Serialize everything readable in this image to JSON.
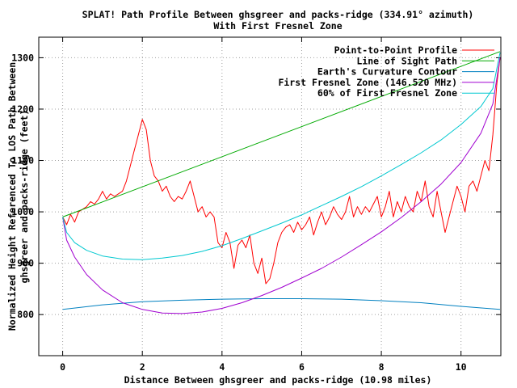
{
  "chart_data": {
    "type": "line",
    "title": "SPLAT! Path Profile Between ghsgreer and packs-ridge (334.91° azimuth)",
    "subtitle": "With First Fresnel Zone",
    "xlabel": "Distance Between ghsgreer and packs-ridge (10.98 miles)",
    "ylabel_line1": "Normalized Height Referenced To LOS Path Between",
    "ylabel_line2": "ghsgreer and packs-ridge (feet)",
    "xlim": [
      -0.6,
      11.0
    ],
    "ylim": [
      720,
      1340
    ],
    "xticks": [
      0,
      2,
      4,
      6,
      8,
      10
    ],
    "yticks": [
      800,
      900,
      1000,
      1100,
      1200,
      1300
    ],
    "grid": true,
    "legend_position": "top-right",
    "series": [
      {
        "name": "Point-to-Point Profile",
        "color": "#ff0000",
        "points": [
          [
            0,
            990
          ],
          [
            0.1,
            975
          ],
          [
            0.2,
            995
          ],
          [
            0.3,
            980
          ],
          [
            0.4,
            1000
          ],
          [
            0.5,
            1005
          ],
          [
            0.6,
            1010
          ],
          [
            0.7,
            1020
          ],
          [
            0.8,
            1015
          ],
          [
            0.9,
            1025
          ],
          [
            1.0,
            1040
          ],
          [
            1.1,
            1025
          ],
          [
            1.2,
            1035
          ],
          [
            1.3,
            1030
          ],
          [
            1.4,
            1035
          ],
          [
            1.5,
            1040
          ],
          [
            1.6,
            1060
          ],
          [
            1.7,
            1090
          ],
          [
            1.8,
            1120
          ],
          [
            1.9,
            1150
          ],
          [
            2.0,
            1180
          ],
          [
            2.1,
            1160
          ],
          [
            2.2,
            1100
          ],
          [
            2.3,
            1070
          ],
          [
            2.4,
            1060
          ],
          [
            2.5,
            1040
          ],
          [
            2.6,
            1050
          ],
          [
            2.7,
            1030
          ],
          [
            2.8,
            1020
          ],
          [
            2.9,
            1030
          ],
          [
            3.0,
            1025
          ],
          [
            3.1,
            1040
          ],
          [
            3.2,
            1060
          ],
          [
            3.3,
            1030
          ],
          [
            3.4,
            1000
          ],
          [
            3.5,
            1010
          ],
          [
            3.6,
            990
          ],
          [
            3.7,
            1000
          ],
          [
            3.8,
            990
          ],
          [
            3.9,
            940
          ],
          [
            4.0,
            930
          ],
          [
            4.1,
            960
          ],
          [
            4.2,
            940
          ],
          [
            4.3,
            890
          ],
          [
            4.4,
            935
          ],
          [
            4.5,
            945
          ],
          [
            4.6,
            930
          ],
          [
            4.7,
            955
          ],
          [
            4.8,
            900
          ],
          [
            4.9,
            880
          ],
          [
            5.0,
            910
          ],
          [
            5.1,
            860
          ],
          [
            5.2,
            870
          ],
          [
            5.3,
            900
          ],
          [
            5.4,
            940
          ],
          [
            5.5,
            960
          ],
          [
            5.6,
            970
          ],
          [
            5.7,
            975
          ],
          [
            5.8,
            960
          ],
          [
            5.9,
            980
          ],
          [
            6.0,
            965
          ],
          [
            6.1,
            975
          ],
          [
            6.2,
            990
          ],
          [
            6.3,
            955
          ],
          [
            6.4,
            980
          ],
          [
            6.5,
            1000
          ],
          [
            6.6,
            975
          ],
          [
            6.7,
            990
          ],
          [
            6.8,
            1010
          ],
          [
            6.9,
            995
          ],
          [
            7.0,
            985
          ],
          [
            7.1,
            1000
          ],
          [
            7.2,
            1030
          ],
          [
            7.3,
            990
          ],
          [
            7.4,
            1010
          ],
          [
            7.5,
            995
          ],
          [
            7.6,
            1010
          ],
          [
            7.7,
            1000
          ],
          [
            7.8,
            1015
          ],
          [
            7.9,
            1030
          ],
          [
            8.0,
            990
          ],
          [
            8.1,
            1010
          ],
          [
            8.2,
            1040
          ],
          [
            8.3,
            990
          ],
          [
            8.4,
            1020
          ],
          [
            8.5,
            1000
          ],
          [
            8.6,
            1030
          ],
          [
            8.7,
            1010
          ],
          [
            8.8,
            1000
          ],
          [
            8.9,
            1040
          ],
          [
            9.0,
            1020
          ],
          [
            9.1,
            1060
          ],
          [
            9.2,
            1010
          ],
          [
            9.3,
            990
          ],
          [
            9.4,
            1040
          ],
          [
            9.5,
            1000
          ],
          [
            9.6,
            960
          ],
          [
            9.7,
            990
          ],
          [
            9.8,
            1020
          ],
          [
            9.9,
            1050
          ],
          [
            10.0,
            1030
          ],
          [
            10.1,
            1000
          ],
          [
            10.2,
            1050
          ],
          [
            10.3,
            1060
          ],
          [
            10.4,
            1040
          ],
          [
            10.5,
            1070
          ],
          [
            10.6,
            1100
          ],
          [
            10.7,
            1080
          ],
          [
            10.8,
            1150
          ],
          [
            10.9,
            1250
          ],
          [
            10.98,
            1300
          ]
        ]
      },
      {
        "name": "Line of Sight Path",
        "color": "#00aa00",
        "points": [
          [
            0,
            990
          ],
          [
            10.98,
            1312
          ]
        ]
      },
      {
        "name": "Earth's Curvature Contour",
        "color": "#0080c0",
        "points": [
          [
            0,
            810
          ],
          [
            1,
            819
          ],
          [
            2,
            825
          ],
          [
            3,
            828
          ],
          [
            4,
            830
          ],
          [
            5,
            831
          ],
          [
            6,
            831
          ],
          [
            7,
            830
          ],
          [
            8,
            827
          ],
          [
            9,
            823
          ],
          [
            10,
            816
          ],
          [
            10.98,
            810
          ]
        ]
      },
      {
        "name": "First Fresnel Zone (146.520 MHz)",
        "color": "#a000d0",
        "points": [
          [
            0,
            990
          ],
          [
            0.1,
            945
          ],
          [
            0.3,
            912
          ],
          [
            0.6,
            878
          ],
          [
            1.0,
            848
          ],
          [
            1.5,
            823
          ],
          [
            2.0,
            810
          ],
          [
            2.5,
            803
          ],
          [
            3.0,
            802
          ],
          [
            3.5,
            805
          ],
          [
            4.0,
            812
          ],
          [
            4.5,
            823
          ],
          [
            5.0,
            837
          ],
          [
            5.5,
            853
          ],
          [
            6.0,
            871
          ],
          [
            6.5,
            890
          ],
          [
            7.0,
            912
          ],
          [
            7.5,
            936
          ],
          [
            8.0,
            961
          ],
          [
            8.5,
            989
          ],
          [
            9.0,
            1020
          ],
          [
            9.5,
            1054
          ],
          [
            10.0,
            1096
          ],
          [
            10.5,
            1153
          ],
          [
            10.8,
            1210
          ],
          [
            10.98,
            1300
          ]
        ]
      },
      {
        "name": "60% of First Fresnel Zone",
        "color": "#00c8d0",
        "points": [
          [
            0,
            990
          ],
          [
            0.1,
            960
          ],
          [
            0.3,
            940
          ],
          [
            0.6,
            925
          ],
          [
            1.0,
            914
          ],
          [
            1.5,
            908
          ],
          [
            2.0,
            907
          ],
          [
            2.5,
            910
          ],
          [
            3.0,
            915
          ],
          [
            3.5,
            923
          ],
          [
            4.0,
            934
          ],
          [
            4.5,
            948
          ],
          [
            5.0,
            963
          ],
          [
            5.5,
            978
          ],
          [
            6.0,
            994
          ],
          [
            6.5,
            1012
          ],
          [
            7.0,
            1030
          ],
          [
            7.5,
            1049
          ],
          [
            8.0,
            1070
          ],
          [
            8.5,
            1092
          ],
          [
            9.0,
            1115
          ],
          [
            9.5,
            1140
          ],
          [
            10.0,
            1170
          ],
          [
            10.5,
            1205
          ],
          [
            10.8,
            1240
          ],
          [
            10.98,
            1310
          ]
        ]
      }
    ]
  }
}
